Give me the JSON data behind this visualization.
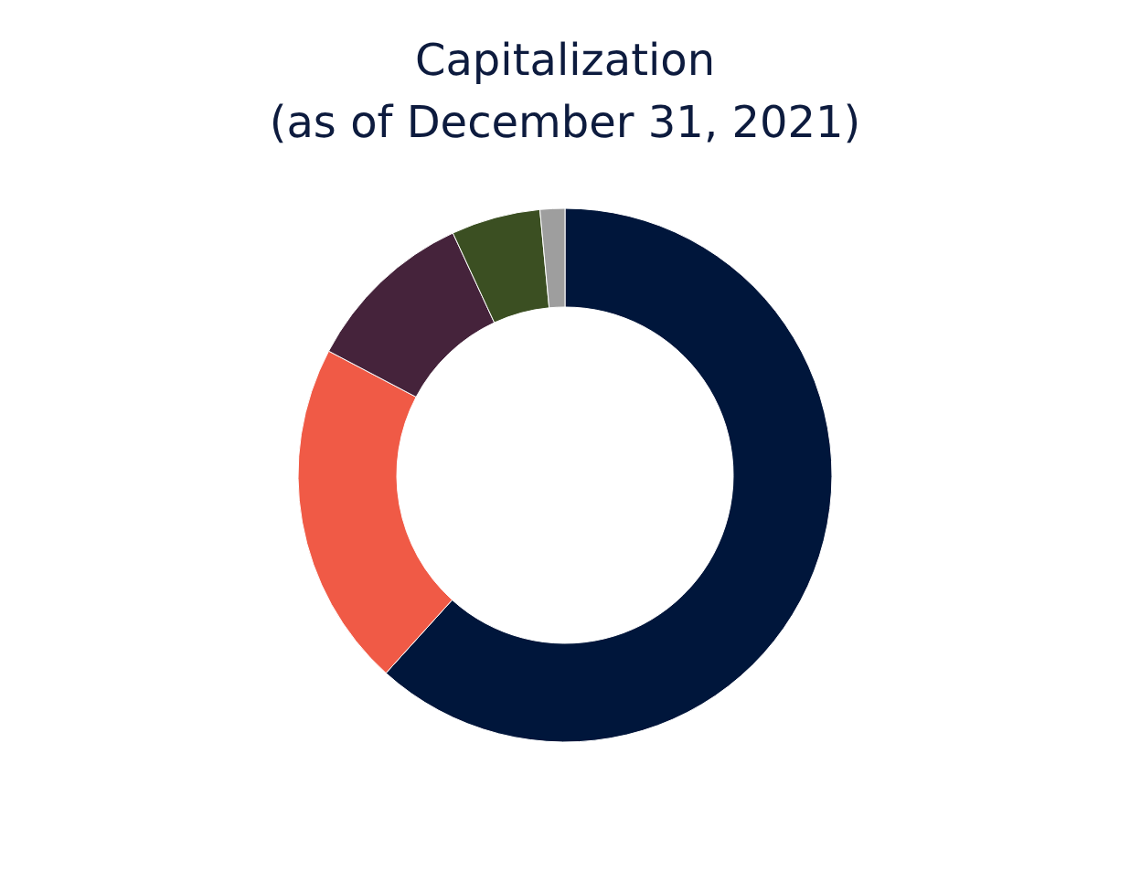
{
  "chart_data": {
    "type": "donut",
    "title": [
      "Capitalization",
      "(as of December 31, 2021)"
    ],
    "categories": [
      null,
      null,
      null,
      null,
      null
    ],
    "values": [
      61.7,
      21,
      10.4,
      5.4,
      1.5
    ],
    "colors": [
      "#00163b",
      "#f05a46",
      "#45233b",
      "#3b4f22",
      "#9e9e9e"
    ],
    "legend": false
  }
}
